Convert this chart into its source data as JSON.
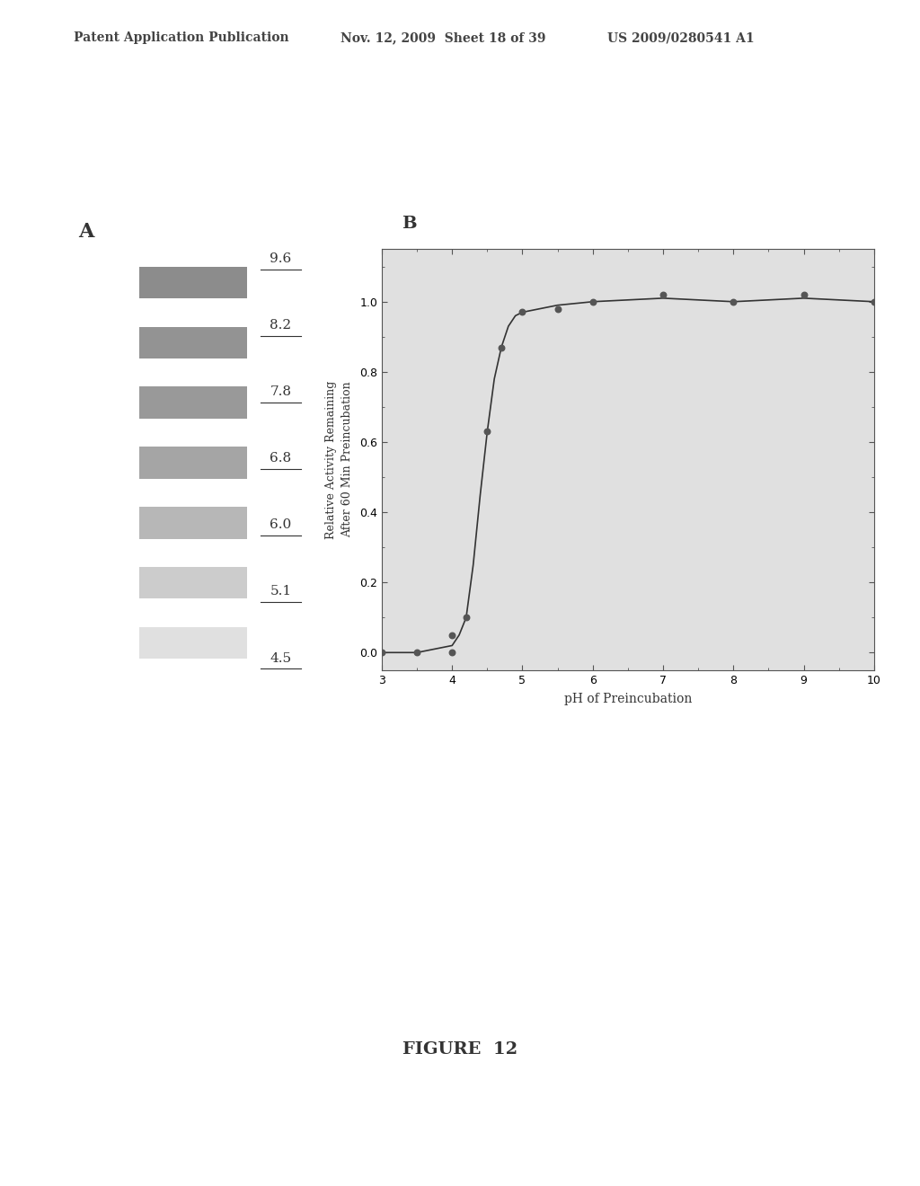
{
  "header_left": "Patent Application Publication",
  "header_mid": "Nov. 12, 2009  Sheet 18 of 39",
  "header_right": "US 2009/0280541 A1",
  "figure_label": "FIGURE  12",
  "panel_a_label": "A",
  "panel_b_label": "B",
  "gel_ph_labels": [
    "9.6",
    "8.2",
    "7.8",
    "6.8",
    "6.0",
    "5.1",
    "4.5"
  ],
  "scatter_x": [
    3.0,
    3.5,
    4.0,
    4.0,
    4.2,
    4.5,
    4.7,
    5.0,
    5.5,
    6.0,
    7.0,
    8.0,
    9.0,
    10.0
  ],
  "scatter_y": [
    0.0,
    0.0,
    0.0,
    0.05,
    0.1,
    0.63,
    0.87,
    0.97,
    0.98,
    1.0,
    1.02,
    1.0,
    1.02,
    1.0
  ],
  "line_x": [
    3.0,
    3.5,
    4.0,
    4.1,
    4.2,
    4.3,
    4.4,
    4.5,
    4.6,
    4.7,
    4.8,
    4.9,
    5.0,
    5.5,
    6.0,
    7.0,
    8.0,
    9.0,
    10.0
  ],
  "line_y": [
    0.0,
    0.0,
    0.02,
    0.05,
    0.1,
    0.25,
    0.45,
    0.63,
    0.78,
    0.87,
    0.93,
    0.96,
    0.97,
    0.99,
    1.0,
    1.01,
    1.0,
    1.01,
    1.0
  ],
  "xlabel": "pH of Preincubation",
  "ylabel": "Relative Activity Remaining\nAfter 60 Min Preincubation",
  "xlim": [
    3,
    10
  ],
  "ylim": [
    -0.05,
    1.15
  ],
  "xticks": [
    3,
    4,
    5,
    6,
    7,
    8,
    9,
    10
  ],
  "yticks": [
    0.0,
    0.2,
    0.4,
    0.6,
    0.8,
    1.0
  ],
  "marker_color": "#555555",
  "line_color": "#333333",
  "bg_color": "#e0e0e0",
  "text_color": "#444444"
}
